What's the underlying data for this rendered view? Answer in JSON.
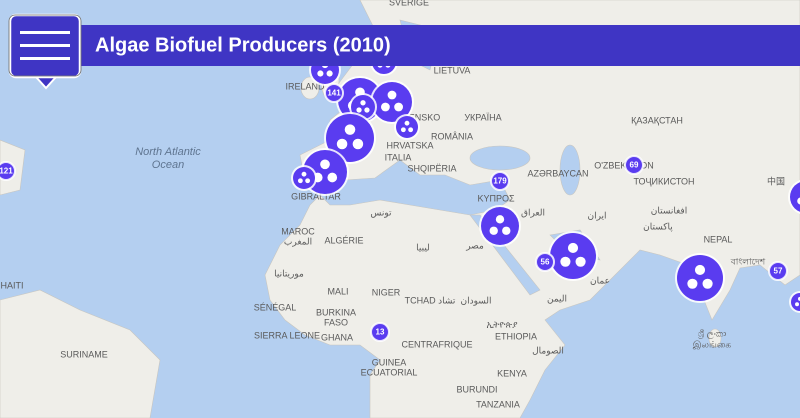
{
  "header": {
    "title": "Algae Biofuel Producers (2010)"
  },
  "map": {
    "labels": [
      "SVERIGE",
      "IRELAND",
      "LIETUVA",
      "УКРАЇНА",
      "OVENSKO",
      "ROMÂNIA",
      "HRVATSKA",
      "ITALIA",
      "SHQIPËRIA",
      "ҚАЗАҚСТАН",
      "O'ZBEKISTON",
      "ТОҶИКИСТОН",
      "AZƏRBAYCAN",
      "North Atlantic",
      "Ocean",
      "GIBRALTAR",
      "KΥΠΡΟΣ",
      "العراق",
      "ایران",
      "افغانستان",
      "پاکستان",
      "中国",
      "تونس",
      "MAROC",
      "المغرب",
      "ALGÉRIE",
      "ليبيا",
      "مصر",
      "NEPAL",
      "বাংলাদেশ",
      "HAITI",
      "موريتانيا",
      "MALI",
      "NIGER",
      "TCHAD تشاد",
      "السودان",
      "SÉNÉGAL",
      "BURKINA",
      "FASO",
      "SIERRA LEONE",
      "GHANA",
      "CENTRAFRIQUE",
      "ኢትዮጵያ",
      "ETHIOPIA",
      "الصومال",
      "عمان",
      "اليمن",
      "SURINAME",
      "GUINEA",
      "ECUATORIAL",
      "KENYA",
      "BURUNDI",
      "TANZANIA",
      "ශ්‍රී ලංකා",
      "இலங்கை"
    ],
    "clusters": [
      121,
      141,
      179,
      69,
      56,
      57,
      13
    ]
  }
}
